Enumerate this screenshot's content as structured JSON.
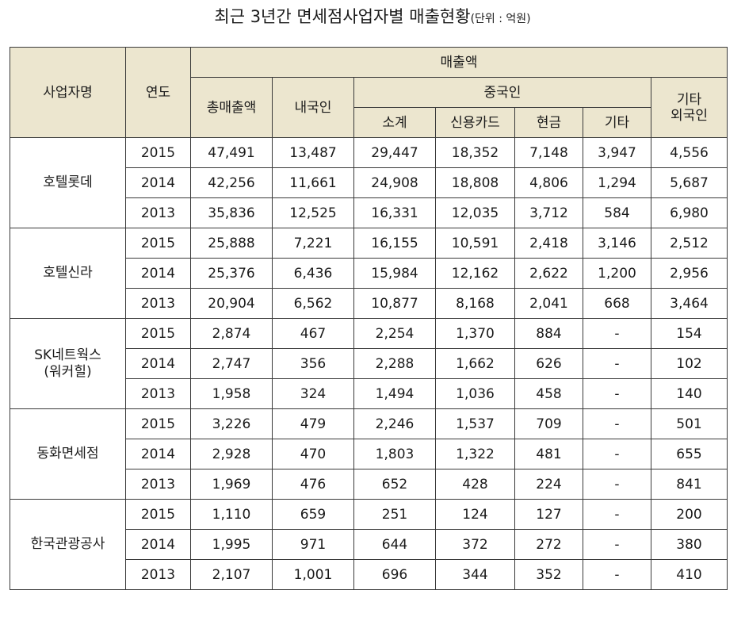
{
  "title": {
    "main": "최근  3년간  면세점사업자별  매출현황",
    "unit": "(단위 : 억원)"
  },
  "headers": {
    "name": "사업자명",
    "year": "연도",
    "sales": "매출액",
    "total": "총매출액",
    "domestic": "내국인",
    "chinese": "중국인",
    "subtotal": "소계",
    "credit_card": "신용카드",
    "cash": "현금",
    "etc": "기타",
    "other_foreign_line1": "기타",
    "other_foreign_line2": "외국인"
  },
  "companies": [
    {
      "name": "호텔롯데",
      "rows": [
        {
          "year": "2015",
          "total": "47,491",
          "domestic": "13,487",
          "subtotal": "29,447",
          "card": "18,352",
          "cash": "7,148",
          "etc": "3,947",
          "other": "4,556"
        },
        {
          "year": "2014",
          "total": "42,256",
          "domestic": "11,661",
          "subtotal": "24,908",
          "card": "18,808",
          "cash": "4,806",
          "etc": "1,294",
          "other": "5,687"
        },
        {
          "year": "2013",
          "total": "35,836",
          "domestic": "12,525",
          "subtotal": "16,331",
          "card": "12,035",
          "cash": "3,712",
          "etc": "584",
          "other": "6,980"
        }
      ]
    },
    {
      "name": "호텔신라",
      "rows": [
        {
          "year": "2015",
          "total": "25,888",
          "domestic": "7,221",
          "subtotal": "16,155",
          "card": "10,591",
          "cash": "2,418",
          "etc": "3,146",
          "other": "2,512"
        },
        {
          "year": "2014",
          "total": "25,376",
          "domestic": "6,436",
          "subtotal": "15,984",
          "card": "12,162",
          "cash": "2,622",
          "etc": "1,200",
          "other": "2,956"
        },
        {
          "year": "2013",
          "total": "20,904",
          "domestic": "6,562",
          "subtotal": "10,877",
          "card": "8,168",
          "cash": "2,041",
          "etc": "668",
          "other": "3,464"
        }
      ]
    },
    {
      "name": "SK네트웍스",
      "name_line2": "(워커힐)",
      "rows": [
        {
          "year": "2015",
          "total": "2,874",
          "domestic": "467",
          "subtotal": "2,254",
          "card": "1,370",
          "cash": "884",
          "etc": "-",
          "other": "154"
        },
        {
          "year": "2014",
          "total": "2,747",
          "domestic": "356",
          "subtotal": "2,288",
          "card": "1,662",
          "cash": "626",
          "etc": "-",
          "other": "102"
        },
        {
          "year": "2013",
          "total": "1,958",
          "domestic": "324",
          "subtotal": "1,494",
          "card": "1,036",
          "cash": "458",
          "etc": "-",
          "other": "140"
        }
      ]
    },
    {
      "name": "동화면세점",
      "rows": [
        {
          "year": "2015",
          "total": "3,226",
          "domestic": "479",
          "subtotal": "2,246",
          "card": "1,537",
          "cash": "709",
          "etc": "-",
          "other": "501"
        },
        {
          "year": "2014",
          "total": "2,928",
          "domestic": "470",
          "subtotal": "1,803",
          "card": "1,322",
          "cash": "481",
          "etc": "-",
          "other": "655"
        },
        {
          "year": "2013",
          "total": "1,969",
          "domestic": "476",
          "subtotal": "652",
          "card": "428",
          "cash": "224",
          "etc": "-",
          "other": "841"
        }
      ]
    },
    {
      "name": "한국관광공사",
      "rows": [
        {
          "year": "2015",
          "total": "1,110",
          "domestic": "659",
          "subtotal": "251",
          "card": "124",
          "cash": "127",
          "etc": "-",
          "other": "200"
        },
        {
          "year": "2014",
          "total": "1,995",
          "domestic": "971",
          "subtotal": "644",
          "card": "372",
          "cash": "272",
          "etc": "-",
          "other": "380"
        },
        {
          "year": "2013",
          "total": "2,107",
          "domestic": "1,001",
          "subtotal": "696",
          "card": "344",
          "cash": "352",
          "etc": "-",
          "other": "410"
        }
      ]
    }
  ]
}
